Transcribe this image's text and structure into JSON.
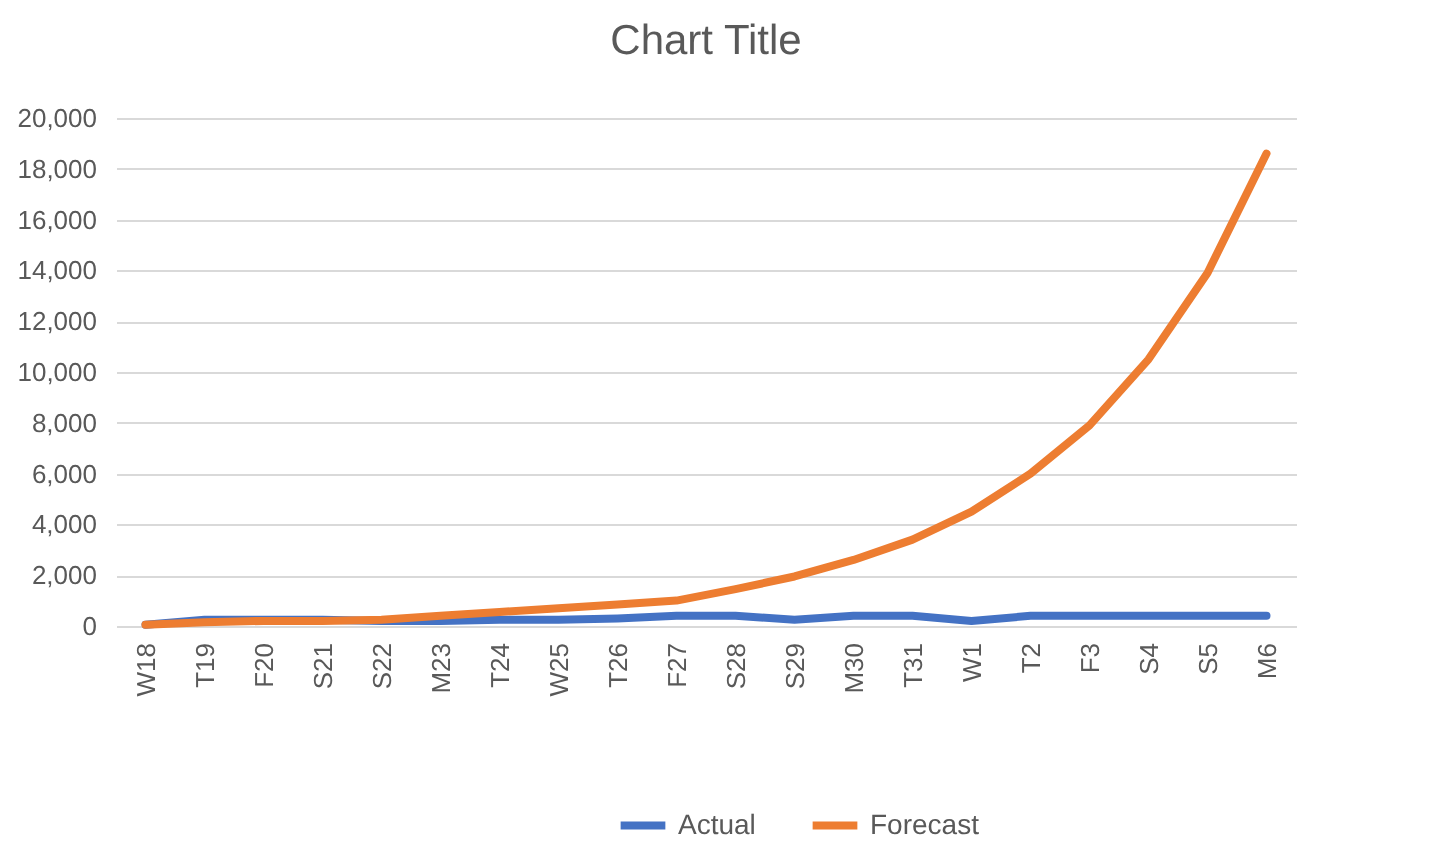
{
  "chart_data": {
    "type": "line",
    "title": "Chart Title",
    "categories": [
      "W18",
      "T19",
      "F20",
      "S21",
      "S22",
      "M23",
      "T24",
      "W25",
      "T26",
      "F27",
      "S28",
      "S29",
      "M30",
      "T31",
      "W1",
      "T2",
      "F3",
      "S4",
      "S5",
      "M6"
    ],
    "series": [
      {
        "name": "Actual",
        "color": "#4472c4",
        "values": [
          50,
          250,
          250,
          250,
          200,
          200,
          250,
          250,
          300,
          400,
          400,
          250,
          400,
          400,
          200,
          400,
          400,
          400,
          400,
          400
        ]
      },
      {
        "name": "Forecast",
        "color": "#ed7d31",
        "values": [
          50,
          150,
          200,
          200,
          250,
          400,
          550,
          700,
          850,
          1000,
          1450,
          1950,
          2600,
          3400,
          4500,
          6000,
          7900,
          10500,
          13900,
          18600
        ]
      }
    ],
    "ylim": [
      0,
      20000
    ],
    "yticks": [
      0,
      {
        "value": 2000,
        "label": "2,000"
      },
      {
        "value": 4000,
        "label": "4,000"
      },
      {
        "value": 6000,
        "label": "6,000"
      },
      {
        "value": 8000,
        "label": "8,000"
      },
      {
        "value": 10000,
        "label": "10,000"
      },
      {
        "value": 12000,
        "label": "12,000"
      },
      {
        "value": 14000,
        "label": "14,000"
      },
      {
        "value": 16000,
        "label": "16,000"
      },
      {
        "value": 18000,
        "label": "18,000"
      },
      {
        "value": 20000,
        "label": "20,000"
      }
    ],
    "grid": "y",
    "legend": "bottom",
    "marker": "none",
    "line_style": "solid"
  }
}
